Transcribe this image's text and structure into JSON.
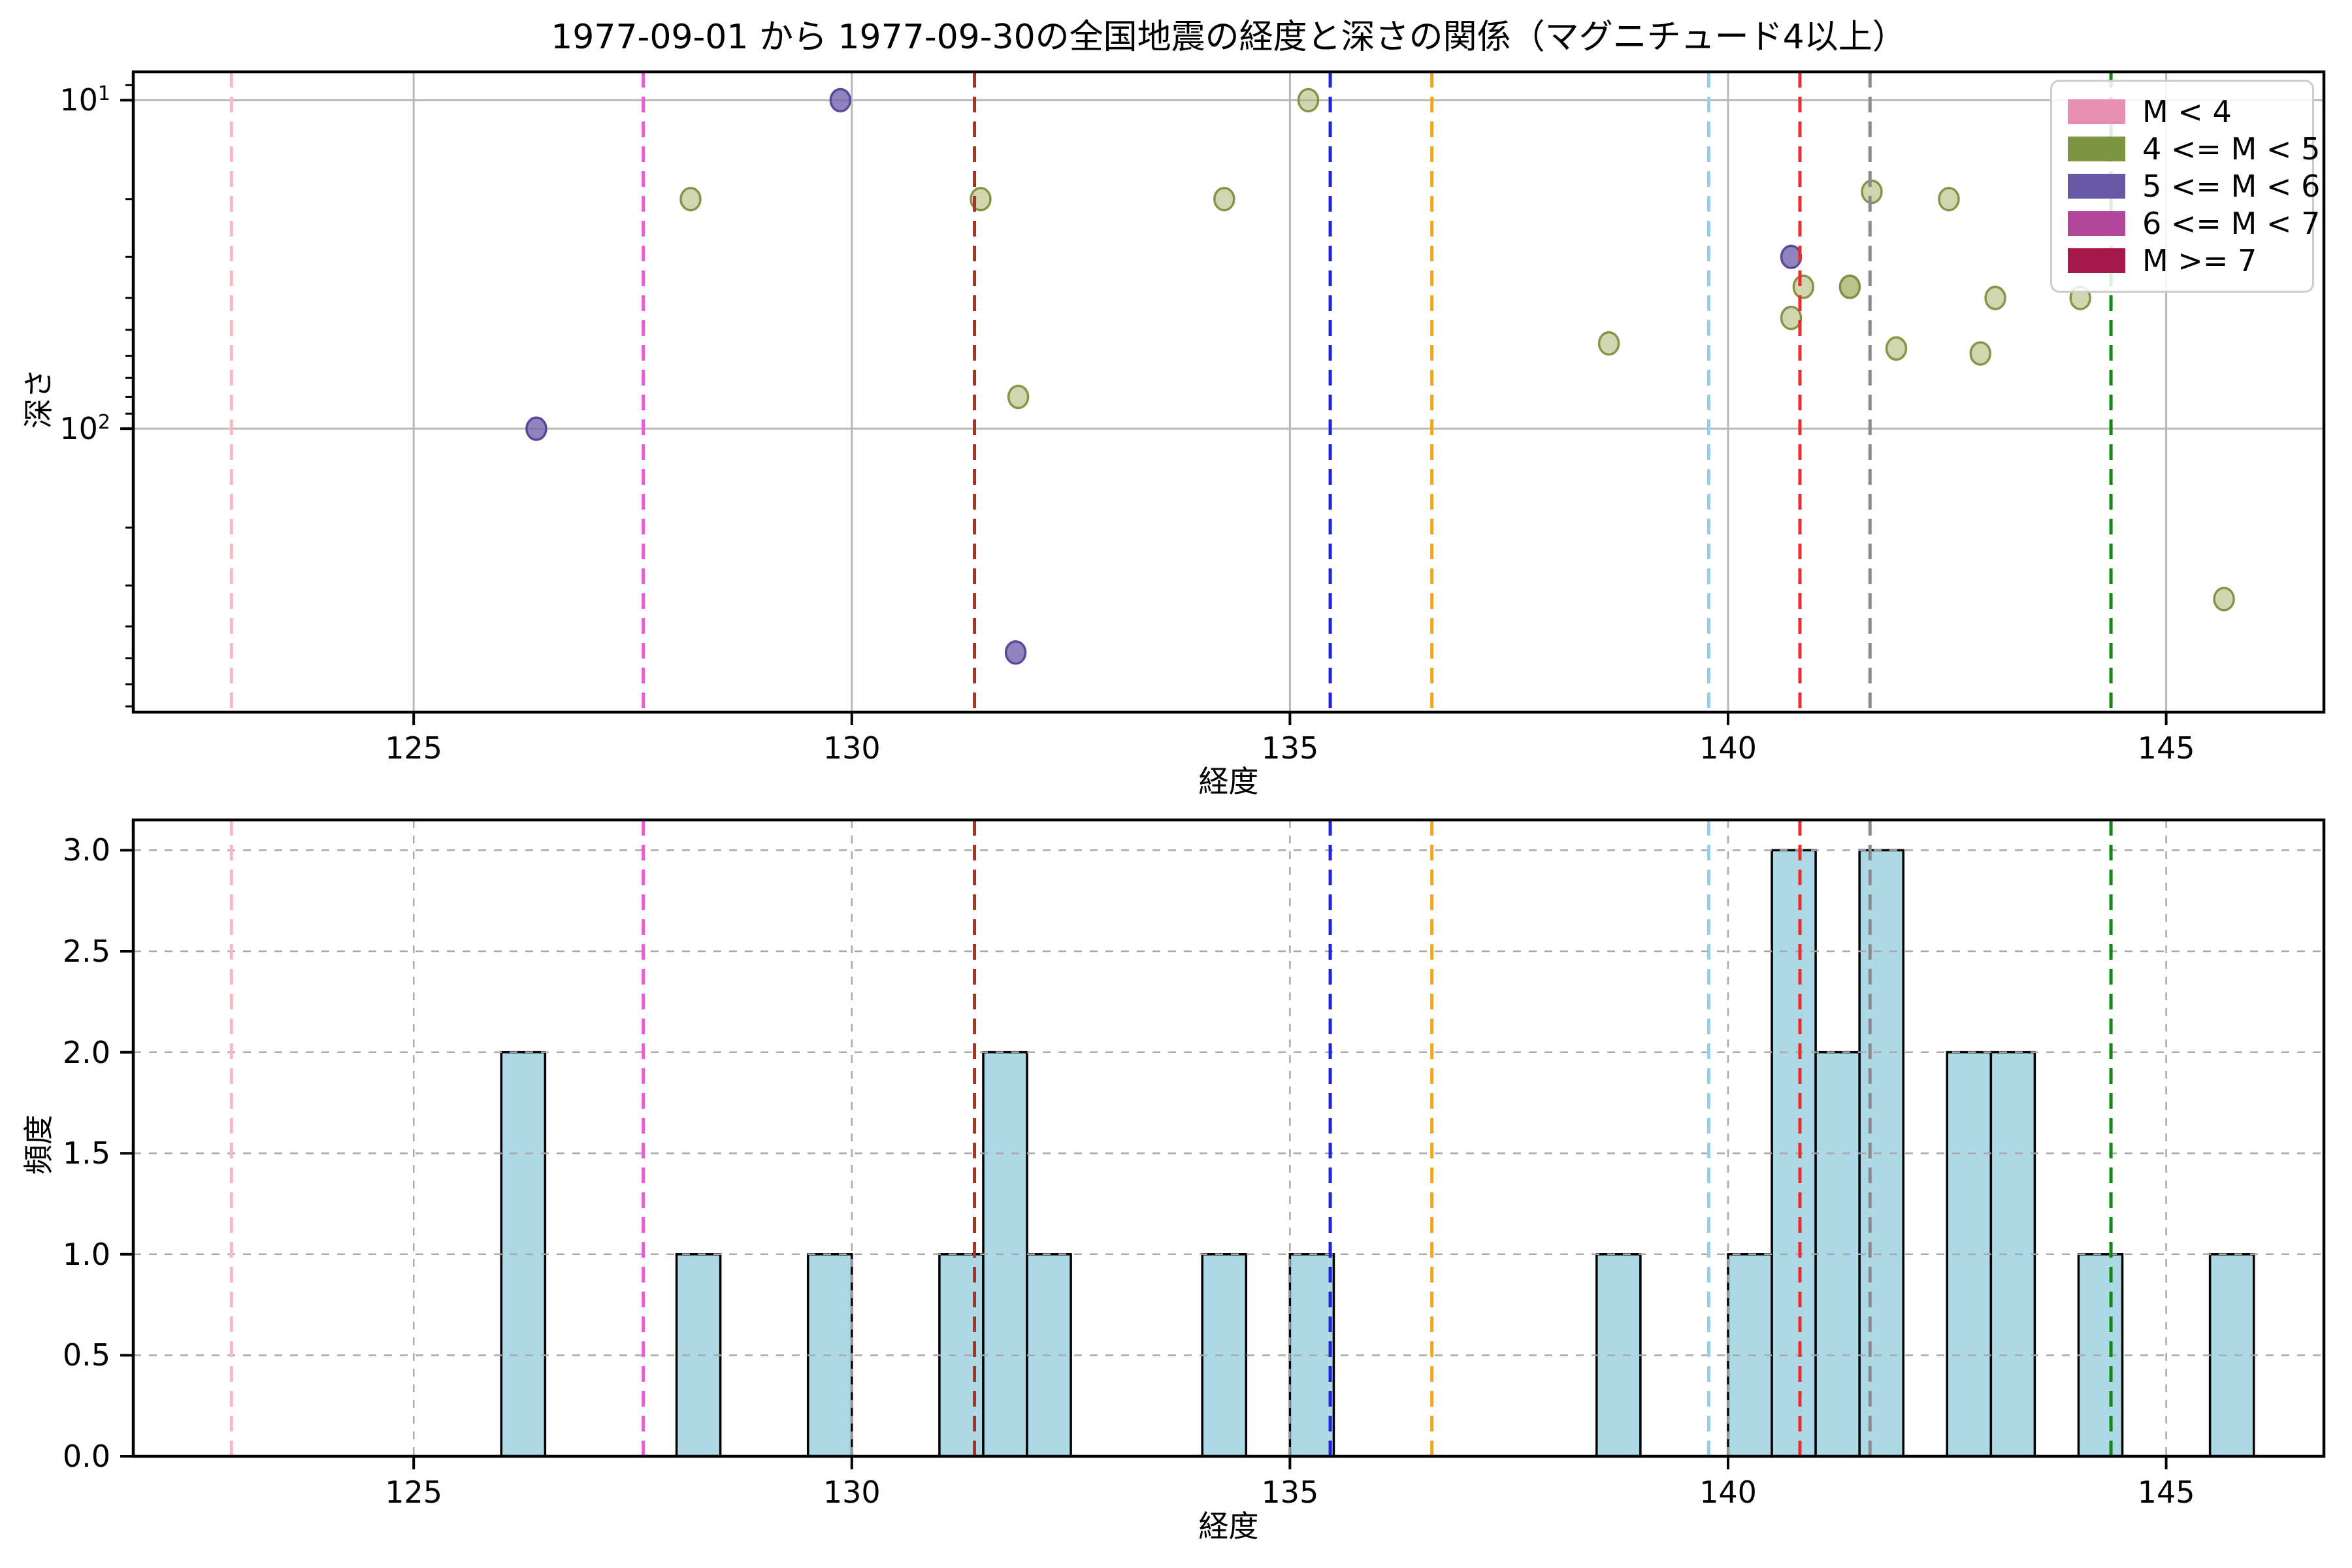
{
  "title": "1977-09-01 から 1977-09-30の全国地震の経度と深さの関係（マグニチュード4以上）",
  "legend": {
    "items": [
      {
        "label": "M < 4",
        "color": "#e78fb0"
      },
      {
        "label": "4 <= M < 5",
        "color": "#7d9440"
      },
      {
        "label": "5 <= M < 6",
        "color": "#6658a5"
      },
      {
        "label": "6 <= M < 7",
        "color": "#b3479e"
      },
      {
        "label": "M >= 7",
        "color": "#a5184a"
      }
    ]
  },
  "vlines": [
    {
      "x": 122.92,
      "color": "#f6b9c6",
      "name": "pink-dashed-line"
    },
    {
      "x": 127.62,
      "color": "#e75fd8",
      "name": "magenta-dashed-line"
    },
    {
      "x": 131.4,
      "color": "#a93226",
      "name": "darkred-dashed-line"
    },
    {
      "x": 135.46,
      "color": "#2020dd",
      "name": "blue-dashed-line"
    },
    {
      "x": 136.62,
      "color": "#ffa500",
      "name": "orange-dashed-line"
    },
    {
      "x": 139.78,
      "color": "#8ed2ee",
      "name": "skyblue-dashed-line"
    },
    {
      "x": 140.82,
      "color": "#e62e2e",
      "name": "red-dashed-line"
    },
    {
      "x": 141.62,
      "color": "#8b8b8b",
      "name": "gray-dashed-line"
    },
    {
      "x": 144.37,
      "color": "#128812",
      "name": "green-dashed-line"
    }
  ],
  "chart_data": [
    {
      "type": "scatter",
      "xlabel": "経度",
      "ylabel": "深さ",
      "xlim": [
        121.8,
        146.8
      ],
      "xticks": [
        125,
        130,
        135,
        140,
        145
      ],
      "yscale": "log",
      "y_inverted": true,
      "ylim": [
        8.2,
        729
      ],
      "yticks": [
        {
          "base": "10",
          "exp": "1",
          "value": 10
        },
        {
          "base": "10",
          "exp": "2",
          "value": 100
        }
      ],
      "yminor": [
        9,
        20,
        30,
        40,
        50,
        60,
        70,
        80,
        90,
        200,
        300,
        400,
        500,
        600,
        700
      ],
      "grid": "solid",
      "series": [
        {
          "name": "4 <= M < 5",
          "fill": "rgba(170,181,112,0.55)",
          "edge": "rgba(128,143,64,0.95)",
          "points": [
            [
              128.16,
              20
            ],
            [
              131.47,
              20
            ],
            [
              131.9,
              80
            ],
            [
              134.25,
              20
            ],
            [
              135.21,
              10
            ],
            [
              138.64,
              55
            ],
            [
              140.86,
              37
            ],
            [
              141.39,
              37
            ],
            [
              141.39,
              37
            ],
            [
              140.72,
              46
            ],
            [
              141.64,
              19
            ],
            [
              141.92,
              57
            ],
            [
              142.52,
              20
            ],
            [
              143.05,
              40
            ],
            [
              144.02,
              40
            ],
            [
              142.88,
              59
            ],
            [
              145.66,
              330
            ]
          ]
        },
        {
          "name": "5 <= M < 6",
          "fill": "rgba(118,100,172,0.8)",
          "edge": "rgba(84,66,148,0.95)",
          "points": [
            [
              126.4,
              100
            ],
            [
              129.87,
              10
            ],
            [
              131.87,
              480
            ],
            [
              140.72,
              30
            ]
          ]
        }
      ]
    },
    {
      "type": "bar",
      "xlabel": "経度",
      "ylabel": "頻度",
      "xlim": [
        121.8,
        146.8
      ],
      "xticks": [
        125,
        130,
        135,
        140,
        145
      ],
      "ylim": [
        0,
        3.15
      ],
      "yticks": [
        "0.0",
        "0.5",
        "1.0",
        "1.5",
        "2.0",
        "2.5",
        "3.0"
      ],
      "grid": "dashed",
      "bar_color": "#add8e6",
      "bar_edge": "#000000",
      "bin_width": 0.5,
      "bins": [
        {
          "start": 126.0,
          "count": 2
        },
        {
          "start": 128.0,
          "count": 1
        },
        {
          "start": 129.5,
          "count": 1
        },
        {
          "start": 131.0,
          "count": 1
        },
        {
          "start": 131.5,
          "count": 2
        },
        {
          "start": 132.0,
          "count": 1
        },
        {
          "start": 134.0,
          "count": 1
        },
        {
          "start": 135.0,
          "count": 1
        },
        {
          "start": 138.5,
          "count": 1
        },
        {
          "start": 140.0,
          "count": 1
        },
        {
          "start": 140.5,
          "count": 3
        },
        {
          "start": 141.0,
          "count": 2
        },
        {
          "start": 141.5,
          "count": 3
        },
        {
          "start": 142.5,
          "count": 2
        },
        {
          "start": 143.0,
          "count": 2
        },
        {
          "start": 144.0,
          "count": 1
        },
        {
          "start": 145.5,
          "count": 1
        }
      ]
    }
  ]
}
